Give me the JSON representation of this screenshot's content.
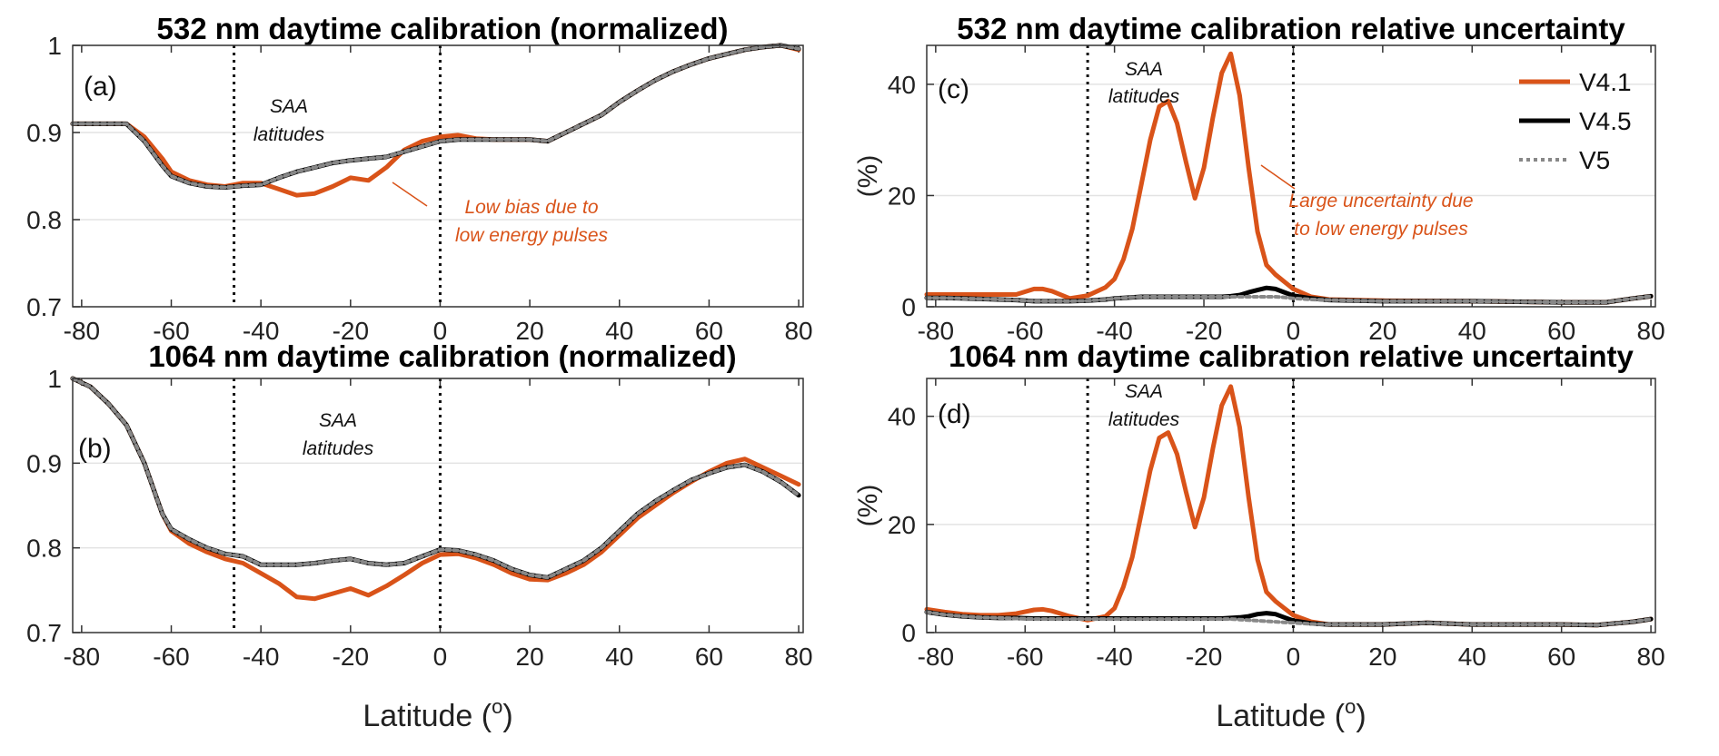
{
  "colors": {
    "v41": "#D95319",
    "v45": "#000000",
    "v5": "#888888",
    "grid": "#E3E3E3",
    "annot": "#D95319"
  },
  "chart_data": [
    {
      "id": "a",
      "type": "line",
      "title": "532 nm daytime calibration (normalized)",
      "panel_label": "(a)",
      "xlabel": "",
      "ylabel": "",
      "xlim": [
        -82,
        81
      ],
      "ylim": [
        0.7,
        1.0
      ],
      "xticks": [
        -80,
        -60,
        -40,
        -20,
        0,
        20,
        40,
        60,
        80
      ],
      "yticks": [
        0.7,
        0.8,
        0.9,
        1.0
      ],
      "ytick_labels": [
        "0.7",
        "0.8",
        "0.9",
        "1"
      ],
      "vlines": [
        -46,
        0
      ],
      "region_label": [
        "SAA",
        "latitudes"
      ],
      "annotation": [
        "Low bias due to",
        "low energy pulses"
      ],
      "x": [
        -82,
        -78,
        -74,
        -70,
        -66,
        -62,
        -60,
        -56,
        -52,
        -48,
        -44,
        -40,
        -36,
        -32,
        -28,
        -24,
        -20,
        -16,
        -12,
        -8,
        -4,
        0,
        4,
        8,
        12,
        16,
        20,
        24,
        28,
        32,
        36,
        40,
        44,
        48,
        52,
        56,
        60,
        64,
        68,
        72,
        76,
        80
      ],
      "series": [
        {
          "name": "V4.1",
          "values": [
            0.91,
            0.91,
            0.91,
            0.91,
            0.895,
            0.87,
            0.855,
            0.845,
            0.84,
            0.838,
            0.842,
            0.842,
            0.835,
            0.828,
            0.83,
            0.838,
            0.848,
            0.845,
            0.86,
            0.88,
            0.89,
            0.895,
            0.897,
            0.893,
            0.892,
            0.892,
            0.892,
            0.89,
            0.9,
            0.91,
            0.92,
            0.935,
            0.948,
            0.96,
            0.97,
            0.978,
            0.985,
            0.99,
            0.995,
            0.998,
            1.0,
            0.995
          ]
        },
        {
          "name": "V4.5",
          "values": [
            0.91,
            0.91,
            0.91,
            0.91,
            0.89,
            0.862,
            0.85,
            0.842,
            0.838,
            0.837,
            0.839,
            0.84,
            0.848,
            0.855,
            0.86,
            0.865,
            0.868,
            0.87,
            0.872,
            0.878,
            0.884,
            0.89,
            0.892,
            0.892,
            0.892,
            0.892,
            0.892,
            0.89,
            0.9,
            0.91,
            0.92,
            0.935,
            0.948,
            0.96,
            0.97,
            0.978,
            0.985,
            0.99,
            0.995,
            0.998,
            1.0,
            0.996
          ]
        },
        {
          "name": "V5",
          "values": [
            0.91,
            0.91,
            0.91,
            0.91,
            0.89,
            0.862,
            0.85,
            0.842,
            0.838,
            0.837,
            0.839,
            0.84,
            0.848,
            0.855,
            0.86,
            0.865,
            0.868,
            0.87,
            0.872,
            0.878,
            0.884,
            0.89,
            0.892,
            0.892,
            0.892,
            0.892,
            0.892,
            0.89,
            0.9,
            0.91,
            0.92,
            0.935,
            0.948,
            0.96,
            0.97,
            0.978,
            0.985,
            0.99,
            0.995,
            0.998,
            1.0,
            0.996
          ]
        }
      ]
    },
    {
      "id": "b",
      "type": "line",
      "title": "1064 nm daytime calibration (normalized)",
      "panel_label": "(b)",
      "xlabel": "Latitude (o)",
      "xlabel_main": "Latitude (",
      "xlabel_sup": "o",
      "xlabel_close": ")",
      "ylabel": "",
      "xlim": [
        -82,
        81
      ],
      "ylim": [
        0.7,
        1.0
      ],
      "xticks": [
        -80,
        -60,
        -40,
        -20,
        0,
        20,
        40,
        60,
        80
      ],
      "yticks": [
        0.7,
        0.8,
        0.9,
        1.0
      ],
      "ytick_labels": [
        "0.7",
        "0.8",
        "0.9",
        "1"
      ],
      "vlines": [
        -46,
        0
      ],
      "region_label": [
        "SAA",
        "latitudes"
      ],
      "x": [
        -82,
        -78,
        -74,
        -70,
        -66,
        -62,
        -60,
        -56,
        -52,
        -48,
        -44,
        -40,
        -36,
        -32,
        -28,
        -24,
        -20,
        -16,
        -12,
        -8,
        -4,
        0,
        4,
        8,
        12,
        16,
        20,
        24,
        28,
        32,
        36,
        40,
        44,
        48,
        52,
        56,
        60,
        64,
        68,
        72,
        76,
        80
      ],
      "series": [
        {
          "name": "V4.1",
          "values": [
            1.0,
            0.99,
            0.97,
            0.945,
            0.9,
            0.84,
            0.82,
            0.805,
            0.795,
            0.787,
            0.782,
            0.77,
            0.758,
            0.742,
            0.74,
            0.746,
            0.752,
            0.744,
            0.755,
            0.768,
            0.782,
            0.792,
            0.793,
            0.788,
            0.78,
            0.77,
            0.763,
            0.762,
            0.77,
            0.78,
            0.795,
            0.815,
            0.835,
            0.85,
            0.865,
            0.878,
            0.89,
            0.9,
            0.905,
            0.895,
            0.885,
            0.875
          ]
        },
        {
          "name": "V4.5",
          "values": [
            1.0,
            0.99,
            0.97,
            0.945,
            0.9,
            0.84,
            0.822,
            0.81,
            0.8,
            0.793,
            0.79,
            0.78,
            0.78,
            0.78,
            0.782,
            0.785,
            0.787,
            0.782,
            0.78,
            0.782,
            0.79,
            0.798,
            0.797,
            0.792,
            0.785,
            0.775,
            0.768,
            0.765,
            0.775,
            0.785,
            0.8,
            0.82,
            0.84,
            0.855,
            0.868,
            0.88,
            0.888,
            0.895,
            0.898,
            0.89,
            0.878,
            0.862
          ]
        },
        {
          "name": "V5",
          "values": [
            1.0,
            0.99,
            0.97,
            0.945,
            0.9,
            0.84,
            0.822,
            0.81,
            0.8,
            0.793,
            0.79,
            0.78,
            0.78,
            0.78,
            0.782,
            0.785,
            0.787,
            0.782,
            0.78,
            0.782,
            0.79,
            0.798,
            0.797,
            0.792,
            0.785,
            0.775,
            0.768,
            0.765,
            0.775,
            0.785,
            0.8,
            0.82,
            0.84,
            0.855,
            0.868,
            0.88,
            0.888,
            0.895,
            0.898,
            0.89,
            0.878,
            0.862
          ]
        }
      ]
    },
    {
      "id": "c",
      "type": "line",
      "title": "532 nm daytime calibration relative uncertainty",
      "panel_label": "(c)",
      "xlabel": "",
      "ylabel": "(%)",
      "xlim": [
        -82,
        81
      ],
      "ylim": [
        0,
        47
      ],
      "xticks": [
        -80,
        -60,
        -40,
        -20,
        0,
        20,
        40,
        60,
        80
      ],
      "yticks": [
        0,
        20,
        40
      ],
      "ytick_labels": [
        "0",
        "20",
        "40"
      ],
      "vlines": [
        -46,
        0
      ],
      "region_label": [
        "SAA",
        "latitudes"
      ],
      "annotation": [
        "Large uncertainty due",
        "to low energy pulses"
      ],
      "legend": [
        "V4.1",
        "V4.5",
        "V5"
      ],
      "x": [
        -82,
        -78,
        -74,
        -70,
        -66,
        -62,
        -58,
        -56,
        -54,
        -50,
        -46,
        -42,
        -40,
        -38,
        -36,
        -34,
        -32,
        -30,
        -28,
        -26,
        -24,
        -22,
        -20,
        -18,
        -16,
        -14,
        -12,
        -10,
        -8,
        -6,
        -4,
        -2,
        0,
        4,
        8,
        20,
        40,
        60,
        70,
        76,
        80
      ],
      "series": [
        {
          "name": "V4.1",
          "values": [
            2.2,
            2.2,
            2.2,
            2.2,
            2.2,
            2.2,
            3.2,
            3.2,
            2.8,
            1.5,
            2.0,
            3.5,
            5.0,
            8.5,
            14.0,
            22.0,
            30.0,
            36.0,
            37.0,
            33.0,
            26.0,
            19.5,
            25.0,
            34.0,
            42.0,
            45.5,
            38.0,
            25.0,
            13.5,
            7.5,
            5.8,
            4.5,
            3.2,
            1.8,
            1.3,
            1.1,
            1.0,
            0.8,
            0.8,
            1.5,
            1.9
          ]
        },
        {
          "name": "V4.5",
          "values": [
            1.6,
            1.6,
            1.5,
            1.4,
            1.3,
            1.2,
            1.0,
            1.0,
            1.0,
            1.0,
            1.1,
            1.3,
            1.5,
            1.6,
            1.7,
            1.8,
            1.8,
            1.8,
            1.8,
            1.8,
            1.8,
            1.8,
            1.8,
            1.8,
            1.8,
            1.9,
            2.1,
            2.6,
            3.0,
            3.4,
            3.2,
            2.6,
            2.0,
            1.5,
            1.2,
            1.0,
            1.0,
            0.8,
            0.8,
            1.5,
            1.9
          ]
        },
        {
          "name": "V5",
          "values": [
            1.6,
            1.6,
            1.5,
            1.4,
            1.3,
            1.2,
            1.0,
            1.0,
            1.0,
            1.0,
            1.1,
            1.3,
            1.5,
            1.6,
            1.7,
            1.8,
            1.8,
            1.8,
            1.8,
            1.8,
            1.8,
            1.8,
            1.8,
            1.8,
            1.8,
            1.8,
            1.8,
            1.8,
            1.8,
            1.8,
            1.8,
            1.7,
            1.5,
            1.3,
            1.2,
            1.0,
            1.0,
            0.8,
            0.8,
            1.5,
            1.9
          ]
        }
      ]
    },
    {
      "id": "d",
      "type": "line",
      "title": "1064 nm daytime calibration relative uncertainty",
      "panel_label": "(d)",
      "xlabel": "Latitude (o)",
      "xlabel_main": "Latitude (",
      "xlabel_sup": "o",
      "xlabel_close": ")",
      "ylabel": "(%)",
      "xlim": [
        -82,
        81
      ],
      "ylim": [
        0,
        47
      ],
      "xticks": [
        -80,
        -60,
        -40,
        -20,
        0,
        20,
        40,
        60,
        80
      ],
      "yticks": [
        0,
        20,
        40
      ],
      "ytick_labels": [
        "0",
        "20",
        "40"
      ],
      "vlines": [
        -46,
        0
      ],
      "region_label": [
        "SAA",
        "latitudes"
      ],
      "x": [
        -82,
        -78,
        -74,
        -70,
        -66,
        -62,
        -58,
        -56,
        -54,
        -50,
        -46,
        -42,
        -40,
        -38,
        -36,
        -34,
        -32,
        -30,
        -28,
        -26,
        -24,
        -22,
        -20,
        -18,
        -16,
        -14,
        -12,
        -10,
        -8,
        -6,
        -4,
        -2,
        0,
        4,
        8,
        20,
        30,
        40,
        60,
        68,
        76,
        80
      ],
      "series": [
        {
          "name": "V4.1",
          "values": [
            4.3,
            3.8,
            3.4,
            3.2,
            3.2,
            3.5,
            4.2,
            4.3,
            4.0,
            3.0,
            2.3,
            3.0,
            4.5,
            8.5,
            14.0,
            22.0,
            30.0,
            36.0,
            37.0,
            33.0,
            26.0,
            19.5,
            25.0,
            34.0,
            42.0,
            45.5,
            38.0,
            25.0,
            13.5,
            7.5,
            5.8,
            4.5,
            3.2,
            2.0,
            1.5,
            1.5,
            1.8,
            1.5,
            1.5,
            1.4,
            2.0,
            2.5
          ]
        },
        {
          "name": "V4.5",
          "values": [
            3.8,
            3.3,
            3.0,
            2.8,
            2.7,
            2.7,
            2.6,
            2.6,
            2.6,
            2.6,
            2.6,
            2.6,
            2.6,
            2.6,
            2.6,
            2.6,
            2.6,
            2.6,
            2.6,
            2.6,
            2.6,
            2.6,
            2.6,
            2.6,
            2.6,
            2.7,
            2.8,
            3.0,
            3.4,
            3.6,
            3.4,
            2.8,
            2.2,
            1.7,
            1.5,
            1.5,
            1.8,
            1.5,
            1.5,
            1.4,
            2.0,
            2.5
          ]
        },
        {
          "name": "V5",
          "values": [
            3.8,
            3.3,
            3.0,
            2.8,
            2.7,
            2.6,
            2.5,
            2.5,
            2.5,
            2.5,
            2.5,
            2.5,
            2.5,
            2.5,
            2.5,
            2.5,
            2.5,
            2.5,
            2.5,
            2.5,
            2.5,
            2.5,
            2.5,
            2.5,
            2.5,
            2.5,
            2.4,
            2.3,
            2.2,
            2.1,
            2.0,
            1.9,
            1.8,
            1.6,
            1.5,
            1.5,
            1.8,
            1.5,
            1.5,
            1.4,
            2.0,
            2.5
          ]
        }
      ]
    }
  ]
}
